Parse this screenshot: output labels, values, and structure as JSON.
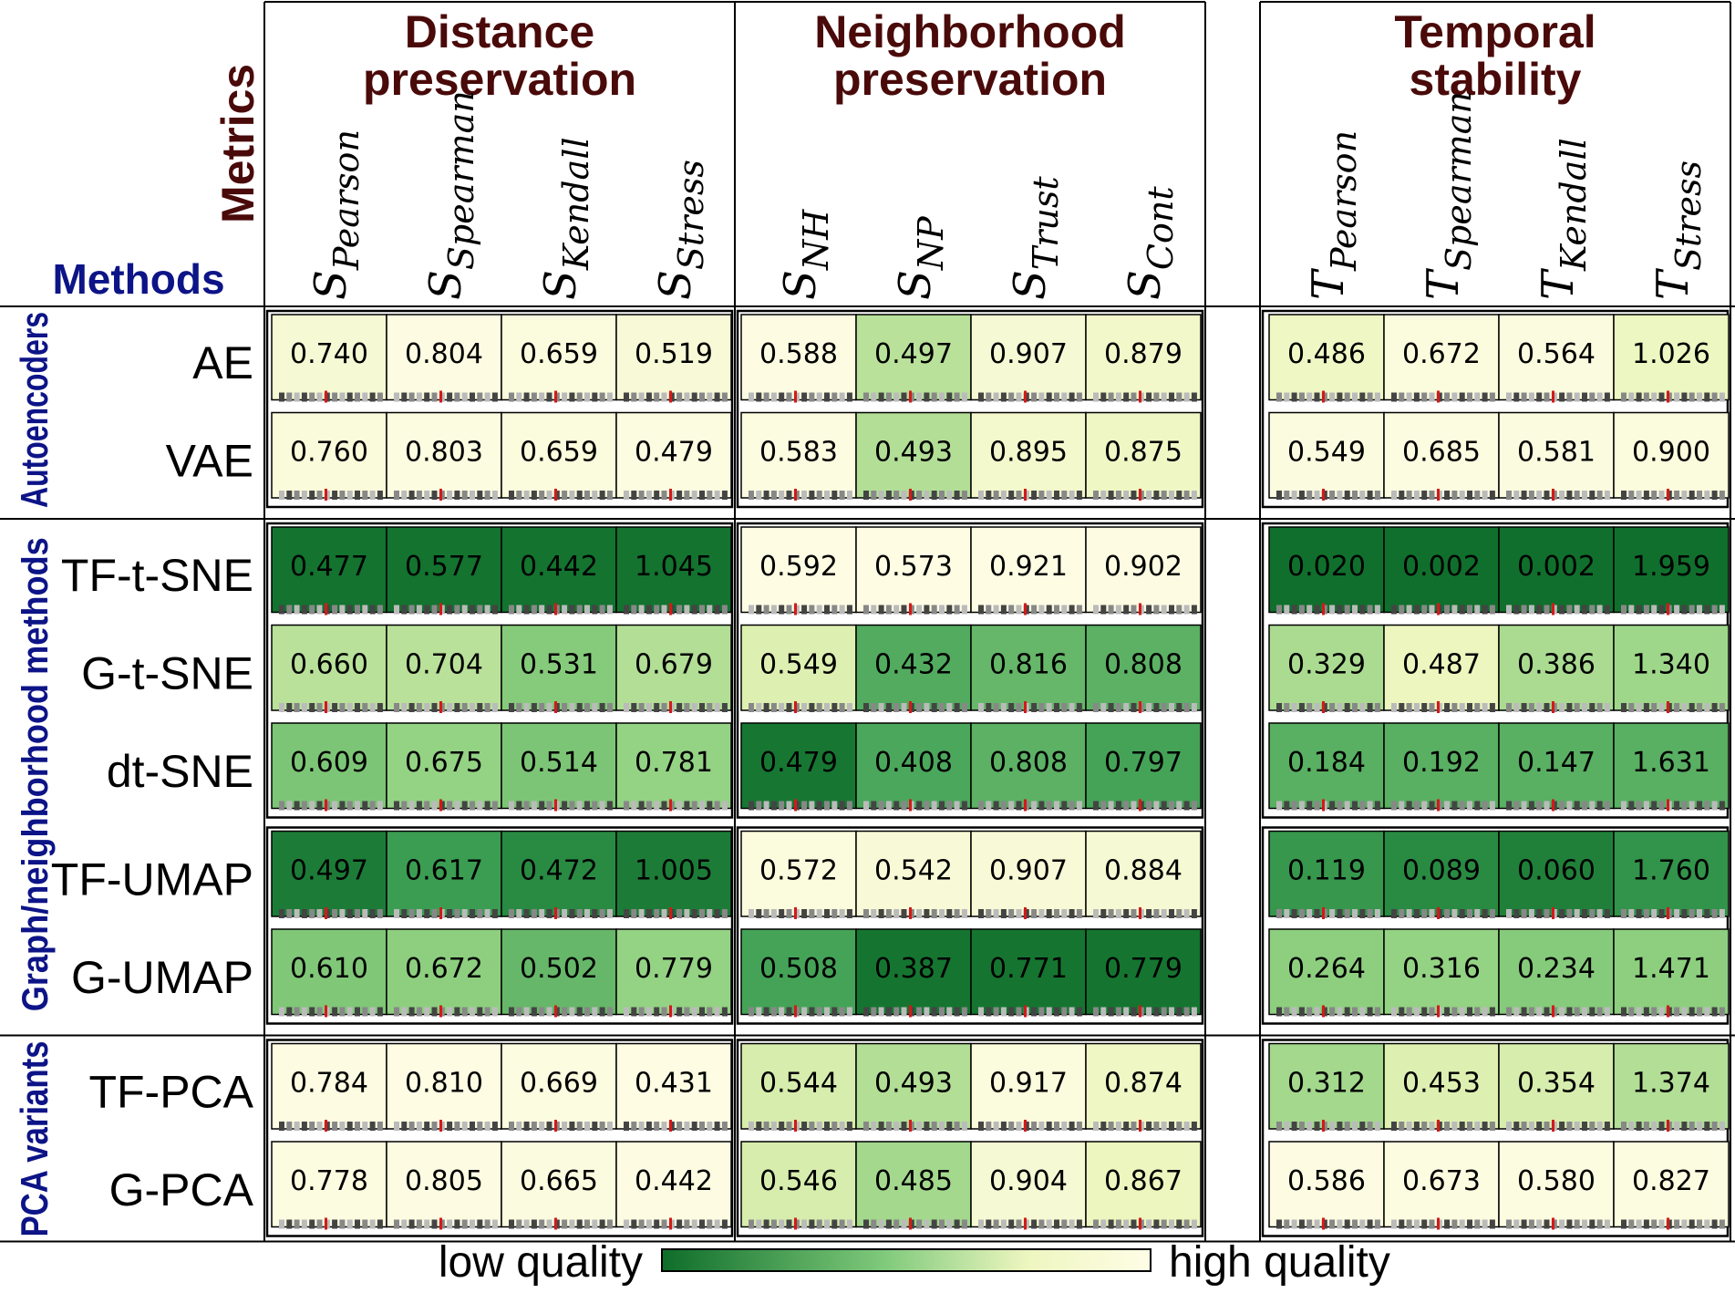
{
  "chart_data": {
    "type": "heatmap",
    "corner": {
      "metrics_label": "Metrics",
      "methods_label": "Methods"
    },
    "groups": [
      {
        "title_lines": [
          "Distance",
          "preservation"
        ],
        "metrics": [
          {
            "base": "S",
            "sub": "Pearson"
          },
          {
            "base": "S",
            "sub": "Spearman"
          },
          {
            "base": "S",
            "sub": "Kendall"
          },
          {
            "base": "S",
            "sub": "Stress"
          }
        ]
      },
      {
        "title_lines": [
          "Neighborhood",
          "preservation"
        ],
        "metrics": [
          {
            "base": "S",
            "sub": "NH"
          },
          {
            "base": "S",
            "sub": "NP"
          },
          {
            "base": "S",
            "sub": "Trust"
          },
          {
            "base": "S",
            "sub": "Cont"
          }
        ]
      },
      {
        "title_lines": [
          "Temporal",
          "stability"
        ],
        "metrics": [
          {
            "base": "T",
            "sub": "Pearson"
          },
          {
            "base": "T",
            "sub": "Spearman"
          },
          {
            "base": "T",
            "sub": "Kendall"
          },
          {
            "base": "T",
            "sub": "Stress"
          }
        ]
      }
    ],
    "categories": [
      {
        "name": "Autoencoders",
        "blocks": [
          {
            "rows": [
              {
                "method": "AE",
                "values": [
                  "0.740",
                  "0.804",
                  "0.659",
                  "0.519",
                  "0.588",
                  "0.497",
                  "0.907",
                  "0.879",
                  "0.486",
                  "0.672",
                  "0.564",
                  "1.026"
                ],
                "quality": [
                  0.9,
                  0.98,
                  0.95,
                  0.92,
                  0.98,
                  0.62,
                  0.9,
                  0.85,
                  0.82,
                  0.95,
                  0.96,
                  0.8
                ]
              },
              {
                "method": "VAE",
                "values": [
                  "0.760",
                  "0.803",
                  "0.659",
                  "0.479",
                  "0.583",
                  "0.493",
                  "0.895",
                  "0.875",
                  "0.549",
                  "0.685",
                  "0.581",
                  "0.900"
                ],
                "quality": [
                  0.94,
                  0.97,
                  0.95,
                  0.97,
                  0.97,
                  0.6,
                  0.86,
                  0.82,
                  0.96,
                  0.97,
                  0.96,
                  0.95
                ]
              }
            ]
          }
        ]
      },
      {
        "name": "Graph/neighborhood methods",
        "blocks": [
          {
            "rows": [
              {
                "method": "TF-t-SNE",
                "values": [
                  "0.477",
                  "0.577",
                  "0.442",
                  "1.045",
                  "0.592",
                  "0.573",
                  "0.921",
                  "0.902",
                  " 0.020",
                  "0.002",
                  "0.002",
                  "1.959"
                ],
                "quality": [
                  0.03,
                  0.03,
                  0.03,
                  0.03,
                  0.99,
                  0.99,
                  0.99,
                  0.98,
                  0.01,
                  0.01,
                  0.01,
                  0.01
                ]
              },
              {
                "method": "G-t-SNE",
                "values": [
                  "0.660",
                  "0.704",
                  "0.531",
                  "0.679",
                  "0.549",
                  "0.432",
                  "0.816",
                  "0.808",
                  "0.329",
                  "0.487",
                  "0.386",
                  "1.340"
                ],
                "quality": [
                  0.62,
                  0.62,
                  0.48,
                  0.6,
                  0.72,
                  0.32,
                  0.38,
                  0.35,
                  0.58,
                  0.78,
                  0.58,
                  0.55
                ]
              },
              {
                "method": "dt-SNE",
                "values": [
                  "0.609",
                  "0.675",
                  "0.514",
                  "0.781",
                  "0.479",
                  "0.408",
                  "0.808",
                  "0.797",
                  "0.184",
                  "0.192",
                  "0.147",
                  "1.631"
                ],
                "quality": [
                  0.45,
                  0.52,
                  0.45,
                  0.52,
                  0.05,
                  0.3,
                  0.35,
                  0.28,
                  0.34,
                  0.34,
                  0.34,
                  0.34
                ]
              }
            ]
          },
          {
            "rows": [
              {
                "method": "TF-UMAP",
                "values": [
                  "0.497",
                  "0.617",
                  "0.472",
                  "1.005",
                  "0.572",
                  "0.542",
                  "0.907",
                  "0.884",
                  "0.119",
                  "0.089",
                  "0.060",
                  "1.760"
                ],
                "quality": [
                  0.08,
                  0.25,
                  0.15,
                  0.08,
                  0.95,
                  0.92,
                  0.92,
                  0.9,
                  0.22,
                  0.15,
                  0.1,
                  0.2
                ]
              },
              {
                "method": "G-UMAP",
                "values": [
                  "0.610",
                  "0.672",
                  "0.502",
                  "0.779",
                  "0.508",
                  "0.387",
                  "0.771",
                  "0.779",
                  "0.264",
                  "0.316",
                  "0.234",
                  "1.471"
                ],
                "quality": [
                  0.46,
                  0.5,
                  0.38,
                  0.52,
                  0.28,
                  0.04,
                  0.04,
                  0.04,
                  0.5,
                  0.52,
                  0.48,
                  0.5
                ]
              }
            ]
          }
        ]
      },
      {
        "name": "PCA variants",
        "blocks": [
          {
            "rows": [
              {
                "method": "TF-PCA",
                "values": [
                  "0.784",
                  "0.810",
                  "0.669",
                  "0.431",
                  "0.544",
                  "0.493",
                  "0.917",
                  "0.874",
                  "0.312",
                  "0.453",
                  "0.354",
                  "1.374"
                ],
                "quality": [
                  0.98,
                  0.99,
                  0.97,
                  0.99,
                  0.7,
                  0.6,
                  0.95,
                  0.82,
                  0.56,
                  0.72,
                  0.7,
                  0.6
                ]
              },
              {
                "method": "G-PCA",
                "values": [
                  "0.778",
                  "0.805",
                  "0.665",
                  "0.442",
                  "0.546",
                  "0.485",
                  "0.904",
                  "0.867",
                  "0.586",
                  "0.673",
                  "0.580",
                  "0.827"
                ],
                "quality": [
                  0.97,
                  0.98,
                  0.96,
                  0.98,
                  0.7,
                  0.56,
                  0.9,
                  0.78,
                  0.98,
                  0.97,
                  0.97,
                  0.97
                ]
              }
            ]
          }
        ]
      }
    ],
    "colors": {
      "low": "#0e6d2a",
      "mid": "#7ec97a",
      "high": "#fffde6",
      "title": "#4a0a0a",
      "category": "#0d1487"
    },
    "legend": {
      "low_label": "low quality",
      "high_label": "high quality"
    }
  }
}
